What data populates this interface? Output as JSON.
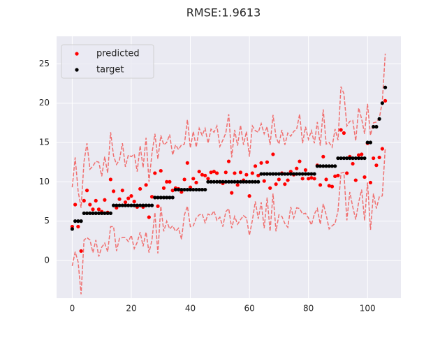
{
  "chart_data": {
    "type": "scatter",
    "title": "RMSE:1.9613",
    "x": [
      0,
      1,
      2,
      3,
      4,
      5,
      6,
      7,
      8,
      9,
      10,
      11,
      12,
      13,
      14,
      15,
      16,
      17,
      18,
      19,
      20,
      21,
      22,
      23,
      24,
      25,
      26,
      27,
      28,
      29,
      30,
      31,
      32,
      33,
      34,
      35,
      36,
      37,
      38,
      39,
      40,
      41,
      42,
      43,
      44,
      45,
      46,
      47,
      48,
      49,
      50,
      51,
      52,
      53,
      54,
      55,
      56,
      57,
      58,
      59,
      60,
      61,
      62,
      63,
      64,
      65,
      66,
      67,
      68,
      69,
      70,
      71,
      72,
      73,
      74,
      75,
      76,
      77,
      78,
      79,
      80,
      81,
      82,
      83,
      84,
      85,
      86,
      87,
      88,
      89,
      90,
      91,
      92,
      93,
      94,
      95,
      96,
      97,
      98,
      99,
      100,
      101,
      102,
      103,
      104,
      105,
      106
    ],
    "series": [
      {
        "name": "predicted",
        "color": "#ff0000",
        "values": [
          4.3,
          7.1,
          4.3,
          1.2,
          7.6,
          8.9,
          7.1,
          6.5,
          7.6,
          6.5,
          6.2,
          7.7,
          6.1,
          10.3,
          8.8,
          6.7,
          7.8,
          8.9,
          7.4,
          7.9,
          8.2,
          7.5,
          6.8,
          9.1,
          6.8,
          9.6,
          5.5,
          8.1,
          11.1,
          6.9,
          11.4,
          9.2,
          10,
          10,
          8.9,
          9.2,
          9.1,
          8.7,
          10.3,
          12.4,
          9.3,
          10.4,
          9.9,
          11.3,
          10.9,
          10.8,
          10.4,
          11.2,
          11.3,
          11.1,
          10,
          9.8,
          11.2,
          12.6,
          8.6,
          11.1,
          9.6,
          11.2,
          10.2,
          10.9,
          8.2,
          11.1,
          12,
          10.8,
          12.4,
          10.1,
          12.5,
          9.2,
          13.5,
          9.7,
          10.3,
          11.1,
          9.7,
          10.2,
          11.3,
          10.9,
          11.7,
          12.6,
          10.4,
          11.5,
          10.4,
          10.5,
          10.4,
          12.1,
          9.6,
          13.2,
          10.3,
          9.5,
          9.4,
          10.7,
          10.8,
          16.6,
          16.2,
          11.1,
          13.2,
          12.3,
          10.2,
          13.4,
          13.5,
          10.6,
          14.9,
          9.9,
          13,
          12.1,
          13.1,
          14.2,
          20.3
        ]
      },
      {
        "name": "target",
        "color": "#000000",
        "values": [
          4,
          5,
          5,
          5,
          6,
          6,
          6,
          6,
          6,
          6,
          6,
          6,
          6,
          6,
          7,
          7,
          7,
          7,
          7,
          7,
          7,
          7,
          7,
          7,
          7,
          7,
          7,
          7,
          8,
          8,
          8,
          8,
          8,
          8,
          8,
          9,
          9,
          9,
          9,
          9,
          9,
          9,
          9,
          9,
          9,
          9,
          10,
          10,
          10,
          10,
          10,
          10,
          10,
          10,
          10,
          10,
          10,
          10,
          10,
          10,
          10,
          10,
          10,
          10,
          11,
          11,
          11,
          11,
          11,
          11,
          11,
          11,
          11,
          11,
          11,
          11,
          11,
          11,
          11,
          11,
          11,
          11,
          11,
          12,
          12,
          12,
          12,
          12,
          12,
          12,
          13,
          13,
          13,
          13,
          13,
          13,
          13,
          13,
          13,
          13,
          15,
          15,
          17,
          17,
          18,
          20,
          22
        ]
      }
    ],
    "bands": [
      {
        "color": "#f07070",
        "values": [
          9.3,
          13.1,
          8.8,
          6.7,
          12.6,
          14.9,
          11.6,
          12,
          12.6,
          12.5,
          10.7,
          13.2,
          11.1,
          16.3,
          13.3,
          12.2,
          12.8,
          14.9,
          11.9,
          13.4,
          13.2,
          13.5,
          11.3,
          14.6,
          11.8,
          15.6,
          10,
          13.6,
          16.1,
          12.9,
          15.9,
          14.7,
          15,
          16,
          13.4,
          14.7,
          14.1,
          14.7,
          14.8,
          17.9,
          14.3,
          16.4,
          14.4,
          16.8,
          15.9,
          16.8,
          14.9,
          16.7,
          16.3,
          17.1,
          14.5,
          15.3,
          16.2,
          18.6,
          13.1,
          16.6,
          14.6,
          17.2,
          14.7,
          16.4,
          13.2,
          17.1,
          16.5,
          16.3,
          17.4,
          16.1,
          17,
          14.7,
          18.5,
          15.7,
          14.8,
          16.6,
          14.7,
          16.2,
          15.8,
          16.4,
          16.7,
          18.6,
          14.9,
          17,
          15.4,
          16.5,
          14.9,
          17.6,
          14.6,
          19.2,
          14.8,
          15,
          14.4,
          16.7,
          15.3,
          22.1,
          21.2,
          17.1,
          17.7,
          17.8,
          15.2,
          19.4,
          18,
          16.1,
          19.9,
          15.9,
          17.5,
          17.6,
          18.1,
          20.2,
          26.3
        ]
      },
      {
        "color": "#f07070",
        "values": [
          -0.7,
          1.1,
          -0.2,
          -4.3,
          2.6,
          2.9,
          2.6,
          1,
          2.6,
          0.5,
          1.7,
          2.2,
          1.1,
          4.3,
          4.3,
          1.2,
          2.8,
          2.9,
          2.9,
          2.4,
          3.2,
          1.5,
          2.3,
          3.6,
          1.8,
          3.6,
          1,
          2.6,
          6.1,
          0.9,
          6.9,
          3.7,
          5,
          4,
          4.4,
          3.7,
          4.1,
          2.7,
          5.8,
          6.9,
          4.3,
          4.4,
          5.4,
          5.8,
          5.9,
          4.8,
          5.9,
          5.7,
          6.3,
          5.1,
          5.5,
          4.3,
          6.2,
          6.6,
          4.1,
          5.6,
          4.6,
          5.2,
          5.7,
          5.4,
          3.2,
          5.1,
          7.5,
          5.3,
          7.4,
          4.1,
          8,
          3.7,
          8.5,
          3.7,
          5.8,
          5.6,
          4.7,
          4.2,
          6.8,
          5.4,
          6.7,
          6.6,
          5.9,
          6,
          5.4,
          4.5,
          5.9,
          6.6,
          4.6,
          7.2,
          5.8,
          4,
          4.4,
          4.7,
          6.3,
          11.1,
          11.2,
          5.1,
          8.7,
          6.8,
          5.2,
          7.4,
          9,
          5.1,
          9.9,
          3.9,
          8.5,
          6.6,
          8.1,
          8.2,
          14.3
        ]
      }
    ],
    "xlim": [
      -5.3,
      111.3
    ],
    "ylim": [
      -4.8,
      28.5
    ],
    "xticks": [
      0,
      20,
      40,
      60,
      80,
      100
    ],
    "yticks": [
      0,
      5,
      10,
      15,
      20,
      25
    ],
    "grid": true,
    "legend": "upper left"
  }
}
